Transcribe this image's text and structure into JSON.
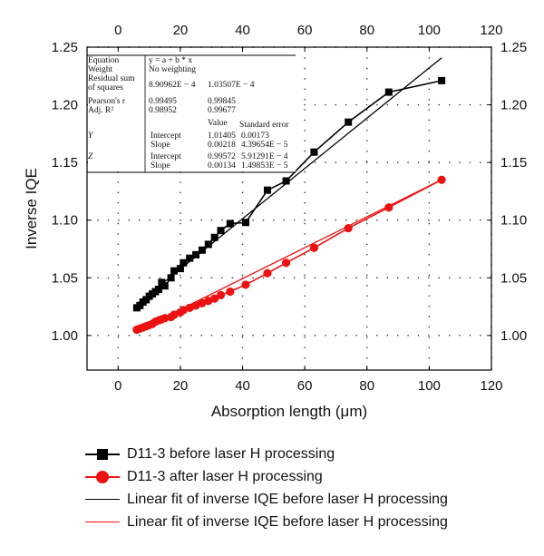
{
  "chart_data": {
    "type": "scatter",
    "xlabel": "Absorption length (μm)",
    "ylabel": "Inverse IQE",
    "xlim": [
      -10,
      120
    ],
    "ylim": [
      0.97,
      1.25
    ],
    "xticks": [
      0,
      20,
      40,
      60,
      80,
      100,
      120
    ],
    "yticks": [
      1.0,
      1.05,
      1.1,
      1.15,
      1.2,
      1.25
    ],
    "xtick_labels": [
      "0",
      "20",
      "40",
      "60",
      "80",
      "100",
      "120"
    ],
    "ytick_labels": [
      "1.00",
      "1.05",
      "1.10",
      "1.15",
      "1.20",
      "1.25"
    ],
    "grid": "dotted",
    "legend_position": "below",
    "series": [
      {
        "name": "D11-3 before laser H processing",
        "marker": "square",
        "color": "#000000",
        "x": [
          6,
          7,
          8,
          9,
          10,
          11,
          12,
          13,
          14,
          15,
          17,
          18,
          20,
          21,
          23,
          25,
          27,
          29,
          31,
          33,
          36,
          41,
          48,
          54,
          63,
          74,
          87,
          104
        ],
        "y": [
          1.024,
          1.026,
          1.029,
          1.031,
          1.034,
          1.036,
          1.038,
          1.04,
          1.046,
          1.043,
          1.05,
          1.056,
          1.058,
          1.063,
          1.067,
          1.07,
          1.074,
          1.079,
          1.085,
          1.091,
          1.097,
          1.098,
          1.126,
          1.134,
          1.159,
          1.185,
          1.211,
          1.221
        ]
      },
      {
        "name": "D11-3 after laser H processing",
        "marker": "circle",
        "color": "#ee1111",
        "x": [
          6,
          7,
          8,
          9,
          10,
          11,
          12,
          13,
          14,
          15,
          17,
          18,
          20,
          21,
          23,
          25,
          27,
          29,
          31,
          33,
          36,
          41,
          48,
          54,
          63,
          74,
          87,
          104
        ],
        "y": [
          1.005,
          1.006,
          1.007,
          1.008,
          1.009,
          1.01,
          1.012,
          1.013,
          1.014,
          1.015,
          1.016,
          1.018,
          1.02,
          1.022,
          1.024,
          1.026,
          1.028,
          1.03,
          1.032,
          1.035,
          1.038,
          1.044,
          1.054,
          1.063,
          1.076,
          1.093,
          1.111,
          1.135
        ]
      },
      {
        "name": "Linear fit of inverse IQE before laser H processing",
        "type": "line",
        "color": "#000000",
        "intercept": 1.01405,
        "slope": 0.00218,
        "x_range": [
          6,
          104
        ]
      },
      {
        "name": "Linear fit of inverse IQE before laser H processing",
        "type": "line",
        "color": "#ee1111",
        "intercept": 0.99572,
        "slope": 0.00134,
        "x_range": [
          6,
          104
        ]
      }
    ],
    "fit_table": {
      "rows": [
        [
          "Equation",
          "y = a + b * x",
          ""
        ],
        [
          "Weight",
          "No weighting",
          ""
        ],
        [
          "Residual sum of squares",
          "8.90962E − 4",
          "1.03507E − 4"
        ],
        [
          "Pearson's r",
          "0.99495",
          "0.99845"
        ],
        [
          "Adj. R²",
          "0.98952",
          "0.99677"
        ]
      ],
      "param_headers": [
        "Value",
        "Standard error"
      ],
      "params": [
        [
          "Y",
          "Intercept",
          "1.01405",
          "0.00173"
        ],
        [
          "",
          "Slope",
          "0.00218",
          "4.39654E − 5"
        ],
        [
          "Z",
          "Intercept",
          "0.99572",
          "5.91291E − 4"
        ],
        [
          "",
          "Slope",
          "0.00134",
          "1.49853E − 5"
        ]
      ]
    }
  }
}
